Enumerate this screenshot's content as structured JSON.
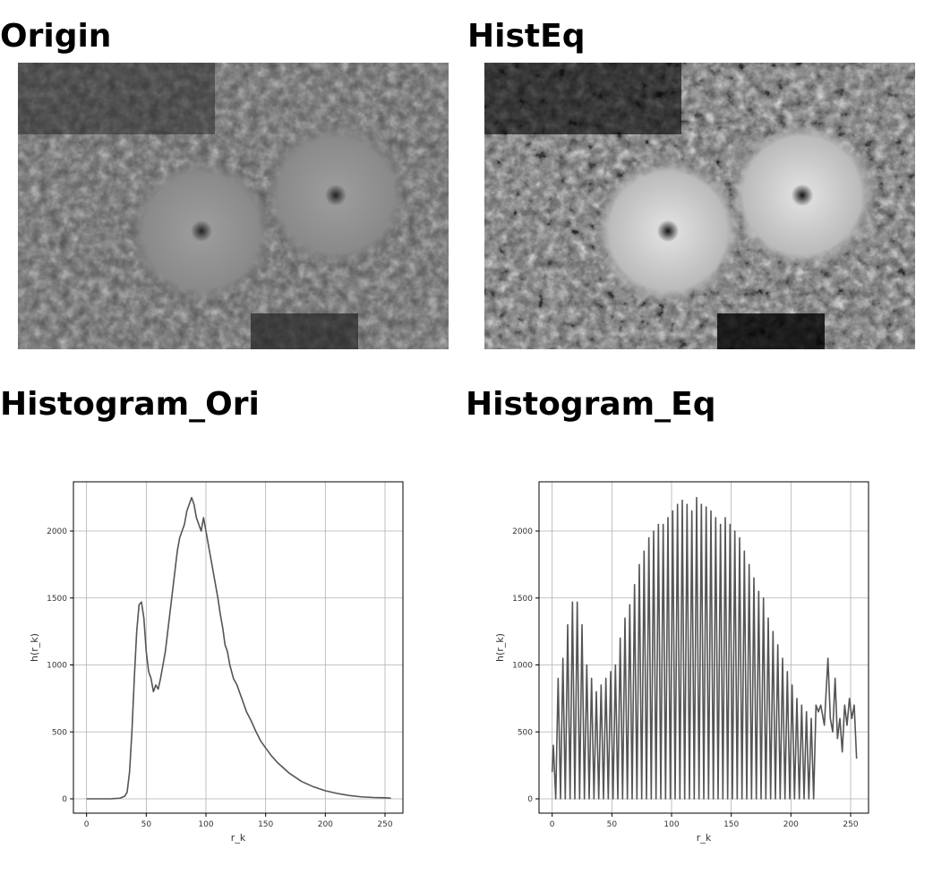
{
  "headings": {
    "origin": "Origin",
    "histeq": "HistEq"
  },
  "chart_data": [
    {
      "type": "line",
      "title": "Histogram_Ori",
      "xlabel": "r_k",
      "ylabel": "h(r_k)",
      "color": "#555555",
      "grid": true,
      "xlim": [
        -11,
        265
      ],
      "ylim": [
        -107,
        2368
      ],
      "xticks": [
        0,
        50,
        100,
        150,
        200,
        250
      ],
      "yticks": [
        0,
        500,
        1000,
        1500,
        2000
      ],
      "x": [
        0,
        10,
        20,
        28,
        32,
        34,
        36,
        38,
        40,
        42,
        44,
        46,
        48,
        50,
        52,
        54,
        56,
        58,
        60,
        62,
        64,
        66,
        68,
        70,
        72,
        74,
        76,
        78,
        80,
        82,
        84,
        86,
        88,
        90,
        92,
        94,
        96,
        98,
        100,
        102,
        104,
        106,
        108,
        110,
        112,
        114,
        116,
        118,
        120,
        123,
        126,
        130,
        134,
        138,
        142,
        146,
        150,
        155,
        160,
        165,
        170,
        175,
        180,
        185,
        190,
        195,
        200,
        205,
        210,
        215,
        220,
        230,
        240,
        250,
        255
      ],
      "values": [
        0,
        0,
        0,
        5,
        20,
        50,
        200,
        500,
        900,
        1250,
        1450,
        1470,
        1350,
        1100,
        950,
        900,
        800,
        850,
        820,
        900,
        1000,
        1100,
        1250,
        1400,
        1550,
        1700,
        1850,
        1950,
        2000,
        2050,
        2150,
        2200,
        2250,
        2200,
        2100,
        2050,
        2000,
        2100,
        2000,
        1900,
        1800,
        1700,
        1600,
        1500,
        1380,
        1280,
        1150,
        1100,
        1000,
        900,
        850,
        750,
        650,
        580,
        500,
        430,
        380,
        320,
        270,
        230,
        190,
        160,
        130,
        110,
        90,
        75,
        60,
        50,
        40,
        32,
        25,
        15,
        10,
        8,
        5
      ]
    },
    {
      "type": "line",
      "title": "Histogram_Eq",
      "xlabel": "r_k",
      "ylabel": "h(r_k)",
      "color": "#555555",
      "grid": true,
      "xlim": [
        -11,
        265
      ],
      "ylim": [
        -107,
        2368
      ],
      "xticks": [
        0,
        50,
        100,
        150,
        200,
        250
      ],
      "yticks": [
        0,
        500,
        1000,
        1500,
        2000
      ],
      "x": [
        0,
        1,
        3,
        5,
        7,
        9,
        11,
        13,
        15,
        17,
        19,
        21,
        23,
        25,
        27,
        29,
        31,
        33,
        35,
        37,
        39,
        41,
        43,
        45,
        47,
        49,
        51,
        53,
        55,
        57,
        59,
        61,
        63,
        65,
        67,
        69,
        71,
        73,
        75,
        77,
        79,
        81,
        83,
        85,
        87,
        89,
        91,
        93,
        95,
        97,
        99,
        101,
        103,
        105,
        107,
        109,
        111,
        113,
        115,
        117,
        119,
        121,
        123,
        125,
        127,
        129,
        131,
        133,
        135,
        137,
        139,
        141,
        143,
        145,
        147,
        149,
        151,
        153,
        155,
        157,
        159,
        161,
        163,
        165,
        167,
        169,
        171,
        173,
        175,
        177,
        179,
        181,
        183,
        185,
        187,
        189,
        191,
        193,
        195,
        197,
        199,
        201,
        203,
        205,
        207,
        209,
        211,
        213,
        215,
        217,
        219,
        221,
        223,
        225,
        228,
        231,
        233,
        235,
        237,
        239,
        241,
        243,
        245,
        247,
        249,
        251,
        253,
        255
      ],
      "values": [
        200,
        400,
        0,
        900,
        0,
        1050,
        0,
        1300,
        0,
        1470,
        0,
        1470,
        0,
        1300,
        0,
        1000,
        0,
        900,
        0,
        800,
        0,
        850,
        0,
        900,
        0,
        950,
        0,
        1000,
        0,
        1200,
        0,
        1350,
        0,
        1450,
        0,
        1600,
        0,
        1750,
        0,
        1850,
        0,
        1950,
        0,
        2000,
        0,
        2050,
        0,
        2050,
        0,
        2100,
        0,
        2150,
        0,
        2200,
        0,
        2230,
        0,
        2200,
        0,
        2150,
        0,
        2250,
        0,
        2200,
        0,
        2180,
        0,
        2150,
        0,
        2100,
        0,
        2050,
        0,
        2100,
        0,
        2050,
        0,
        2000,
        0,
        1950,
        0,
        1850,
        0,
        1750,
        0,
        1650,
        0,
        1550,
        0,
        1500,
        0,
        1350,
        0,
        1250,
        0,
        1150,
        0,
        1050,
        0,
        950,
        0,
        850,
        0,
        750,
        0,
        700,
        0,
        650,
        0,
        600,
        0,
        700,
        650,
        700,
        550,
        1050,
        600,
        500,
        900,
        450,
        600,
        350,
        700,
        550,
        750,
        600,
        700,
        300
      ]
    }
  ]
}
